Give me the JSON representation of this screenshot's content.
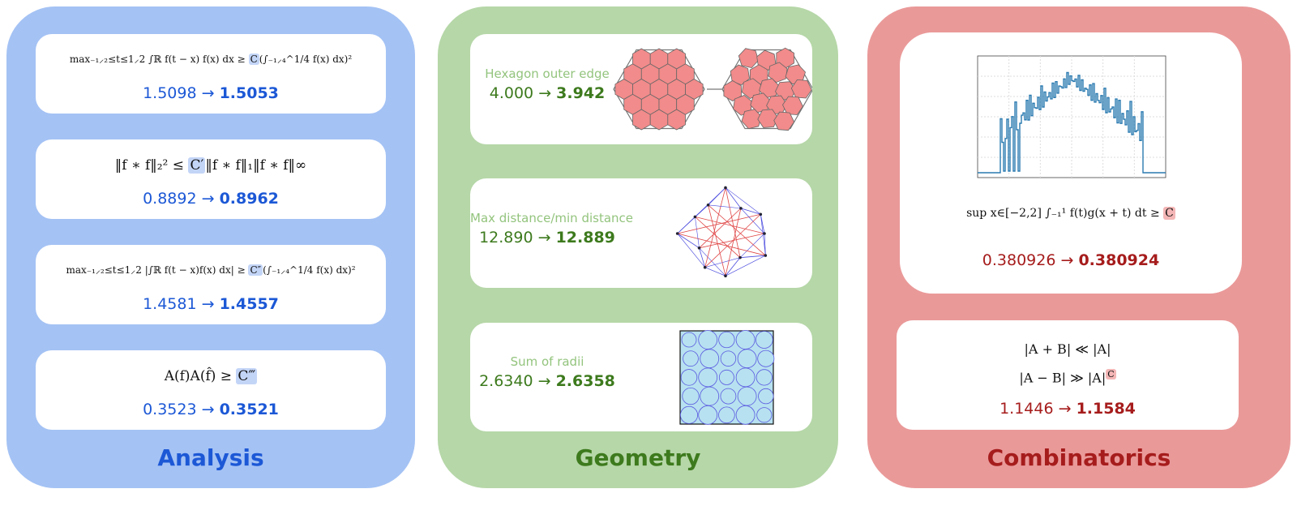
{
  "arrow": "→",
  "panels": [
    {
      "title": "Analysis",
      "cards": [
        {
          "formula": {
            "pre": "max₋₁⸝₂≤t≤1⸝2 ∫ℝ f(t − x) f(x) dx ≥ ",
            "const": "C",
            "post": "(∫₋₁⸝₄^1/4 f(x) dx)²"
          },
          "before": "1.5098",
          "after": "1.5053"
        },
        {
          "formula": {
            "pre": "‖f ∗ f‖₂² ≤ ",
            "const": "C′",
            "post": "‖f ∗ f‖₁‖f ∗ f‖∞"
          },
          "before": "0.8892",
          "after": "0.8962"
        },
        {
          "formula": {
            "pre": "max₋₁⸝₂≤t≤1⸝2 |∫ℝ f(t − x)f(x) dx| ≥ ",
            "const": "C″",
            "post": "(∫₋₁⸝₄^1/4 f(x) dx)²"
          },
          "before": "1.4581",
          "after": "1.4557"
        },
        {
          "formula": {
            "pre": "A(f)A(f̂) ≥ ",
            "const": "C‴"
          },
          "before": "0.3523",
          "after": "0.3521"
        }
      ]
    },
    {
      "title": "Geometry",
      "cards": [
        {
          "label": "Hexagon outer edge",
          "before": "4.000",
          "after": "3.942"
        },
        {
          "label": "Max distance/min distance",
          "before": "12.890",
          "after": "12.889"
        },
        {
          "label": "Sum of radii",
          "before": "2.6340",
          "after": "2.6358"
        }
      ]
    },
    {
      "title": "Combinatorics",
      "cards": [
        {
          "formula": {
            "pre": "sup x∈[−2,2] ∫₋₁¹ f(t)g(x + t) dt ≥ ",
            "const": "C"
          },
          "before": "0.380926",
          "after": "0.380924"
        },
        {
          "formula_lines": [
            {
              "pre": "|A + B| ≪ |A|"
            },
            {
              "pre": "|A − B| ≫ |A|",
              "sup": "C"
            }
          ],
          "before": "1.1446",
          "after": "1.1584"
        }
      ]
    }
  ]
}
